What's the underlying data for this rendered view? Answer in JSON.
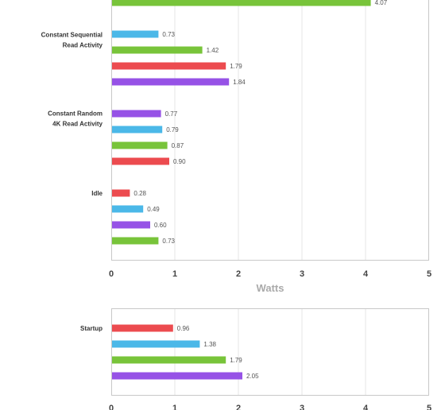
{
  "colors": {
    "red": "#ec4b4f",
    "blue": "#4bb8e8",
    "green": "#78c43a",
    "purple": "#9652e6",
    "grid": "#e6e6e6",
    "frame": "#c8c8c8"
  },
  "chart_data": [
    {
      "type": "bar",
      "orientation": "horizontal",
      "xlabel": "Watts",
      "xlim": [
        0,
        5
      ],
      "x_ticks": [
        "0",
        "1",
        "2",
        "3",
        "4",
        "5"
      ],
      "groups": [
        {
          "label_lines": [],
          "bars": [
            {
              "value": 4.07,
              "label": "4.07",
              "color": "green"
            }
          ]
        },
        {
          "label_lines": [
            "Constant Sequential",
            "Read Activity"
          ],
          "bars": [
            {
              "value": 0.73,
              "label": "0.73",
              "color": "blue"
            },
            {
              "value": 1.42,
              "label": "1.42",
              "color": "green"
            },
            {
              "value": 1.79,
              "label": "1.79",
              "color": "red"
            },
            {
              "value": 1.84,
              "label": "1.84",
              "color": "purple"
            }
          ]
        },
        {
          "label_lines": [
            "Constant Random",
            "4K Read Activity"
          ],
          "bars": [
            {
              "value": 0.77,
              "label": "0.77",
              "color": "purple"
            },
            {
              "value": 0.79,
              "label": "0.79",
              "color": "blue"
            },
            {
              "value": 0.87,
              "label": "0.87",
              "color": "green"
            },
            {
              "value": 0.9,
              "label": "0.90",
              "color": "red"
            }
          ]
        },
        {
          "label_lines": [
            "Idle"
          ],
          "bars": [
            {
              "value": 0.28,
              "label": "0.28",
              "color": "red"
            },
            {
              "value": 0.49,
              "label": "0.49",
              "color": "blue"
            },
            {
              "value": 0.6,
              "label": "0.60",
              "color": "purple"
            },
            {
              "value": 0.73,
              "label": "0.73",
              "color": "green"
            }
          ]
        }
      ]
    },
    {
      "type": "bar",
      "orientation": "horizontal",
      "xlabel": "",
      "xlim": [
        0,
        5
      ],
      "x_ticks": [
        "0",
        "1",
        "2",
        "3",
        "4",
        "5"
      ],
      "groups": [
        {
          "label_lines": [
            "Startup"
          ],
          "bars": [
            {
              "value": 0.96,
              "label": "0.96",
              "color": "red"
            },
            {
              "value": 1.38,
              "label": "1.38",
              "color": "blue"
            },
            {
              "value": 1.79,
              "label": "1.79",
              "color": "green"
            },
            {
              "value": 2.05,
              "label": "2.05",
              "color": "purple"
            }
          ]
        }
      ]
    }
  ]
}
